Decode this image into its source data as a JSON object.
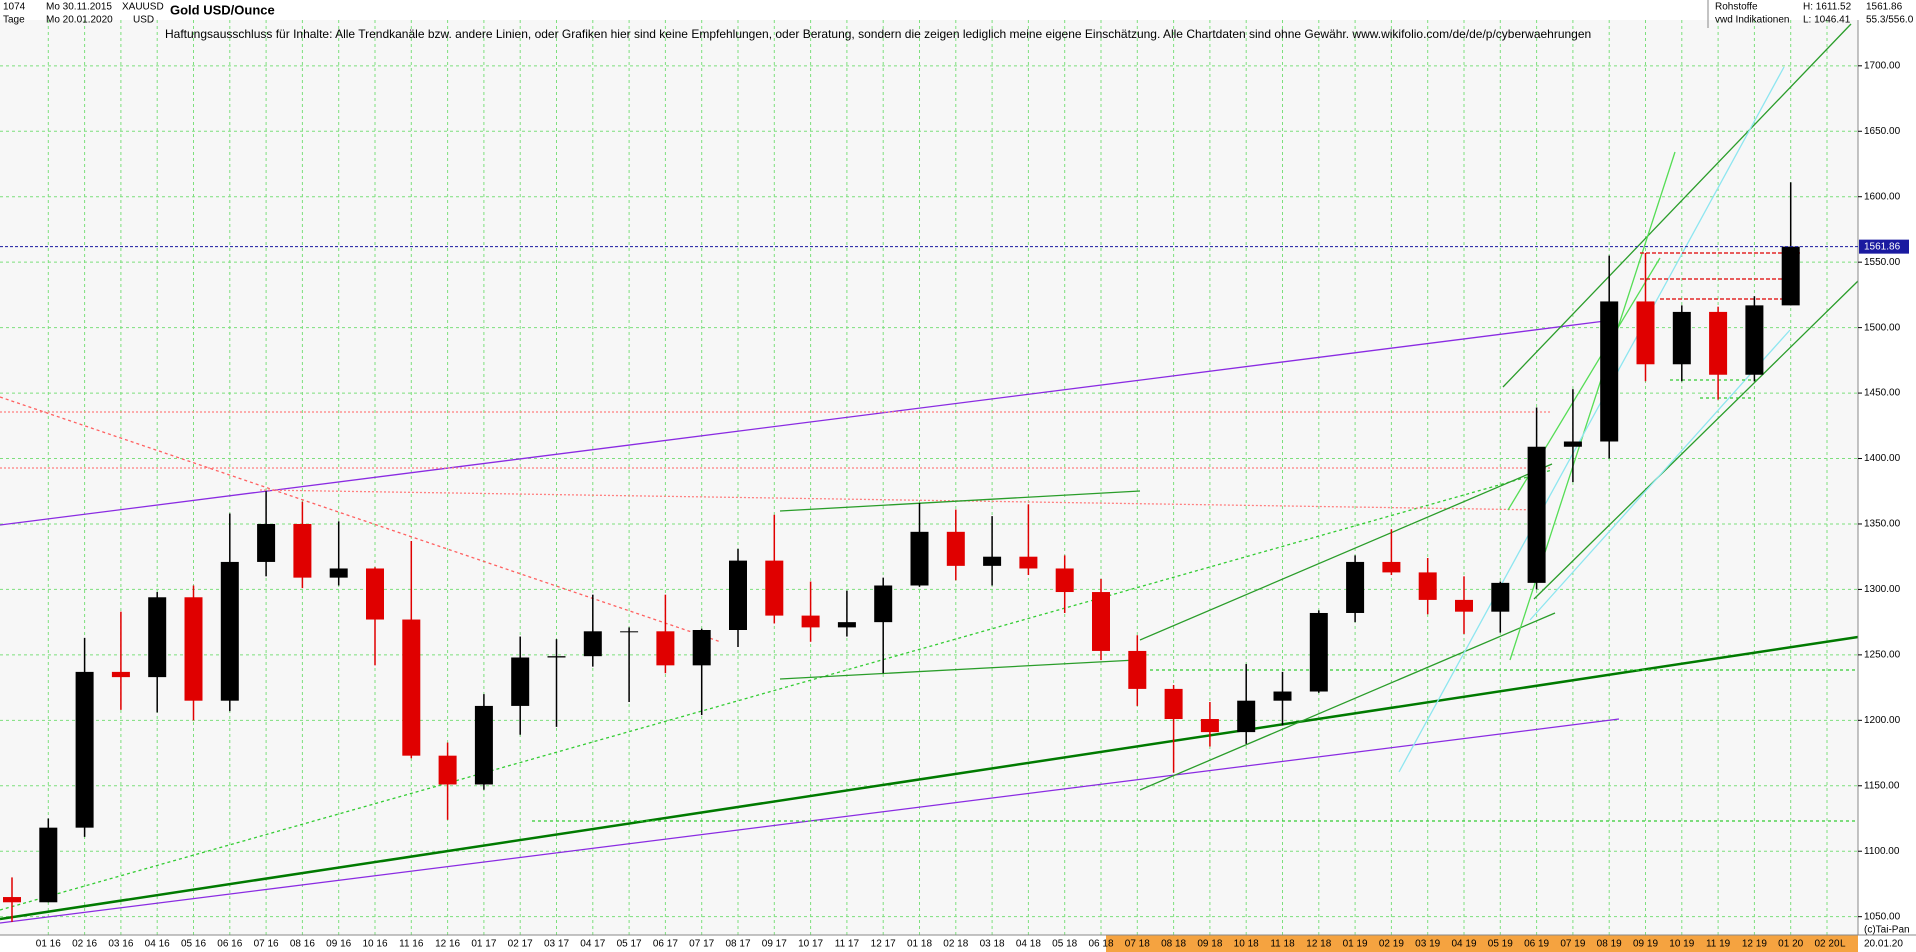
{
  "header": {
    "count": "1074",
    "from": "Mo 30.11.2015",
    "symbol": "XAUUSD",
    "period": "Tage",
    "to": "Mo 20.01.2020",
    "currency": "USD",
    "group": "Rohstoffe",
    "source": "vwd Indikationen",
    "high": "H: 1611.52",
    "low": "L: 1046.41",
    "last": "1561.86",
    "ratio": "55.3/556.0",
    "copyright": "(c)Tai-Pan",
    "date": "20.01.20",
    "scale": "L"
  },
  "chart_data": {
    "type": "candlestick",
    "title": "Gold USD/Ounce",
    "subtitle": "Haftungsausschluss für Inhalte: Alle Trendkanäle bzw. andere Linien, oder Grafiken hier sind keine Empfehlungen, oder Beratung, sondern die zeigen lediglich meine eigene Einschätzung. Alle Chartdaten sind ohne Gewähr.  www.wikifolio.com/de/de/p/cyberwaehrungen",
    "categories": [
      null,
      "01 16",
      "02 16",
      "03 16",
      "04 16",
      "05 16",
      "06 16",
      "07 16",
      "08 16",
      "09 16",
      "10 16",
      "11 16",
      "12 16",
      "01 17",
      "02 17",
      "03 17",
      "04 17",
      "05 17",
      "06 17",
      "07 17",
      "08 17",
      "09 17",
      "10 17",
      "11 17",
      "12 17",
      "01 18",
      "02 18",
      "03 18",
      "04 18",
      "05 18",
      "06 18",
      "07 18",
      "08 18",
      "09 18",
      "10 18",
      "11 18",
      "12 18",
      "01 19",
      "02 19",
      "03 19",
      "04 19",
      "05 19",
      "06 19",
      "07 19",
      "08 19",
      "09 19",
      "10 19",
      "11 19",
      "12 19",
      "01 20",
      "02 20"
    ],
    "open": [
      1065,
      1061,
      1118,
      1237,
      1233,
      1294,
      1215,
      1321,
      1350,
      1309,
      1316,
      1277,
      1173,
      1151,
      1211,
      1248,
      1249,
      1268,
      1268,
      1242,
      1269,
      1322,
      1280,
      1271,
      1275,
      1303,
      1344,
      1318,
      1325,
      1316,
      1298,
      1253,
      1224,
      1201,
      1191,
      1215,
      1222,
      1282,
      1321,
      1313,
      1292,
      1283,
      1305,
      1409,
      1413,
      1520,
      1472,
      1512,
      1464,
      1517,
      null
    ],
    "high": [
      1080,
      1125,
      1263,
      1283,
      1298,
      1303,
      1358,
      1375,
      1367,
      1352,
      1317,
      1337,
      1183,
      1220,
      1264,
      1262,
      1296,
      1271,
      1296,
      1270,
      1331,
      1357,
      1306,
      1299,
      1309,
      1366,
      1361,
      1356,
      1365,
      1326,
      1308,
      1265,
      1227,
      1214,
      1243,
      1237,
      1284,
      1326,
      1346,
      1324,
      1310,
      1306,
      1439,
      1453,
      1555,
      1557,
      1517,
      1516,
      1524,
      1611,
      null
    ],
    "low": [
      1046,
      1061,
      1111,
      1208,
      1206,
      1200,
      1207,
      1310,
      1301,
      1303,
      1242,
      1171,
      1124,
      1147,
      1189,
      1195,
      1241,
      1214,
      1236,
      1204,
      1256,
      1274,
      1260,
      1264,
      1236,
      1302,
      1307,
      1303,
      1311,
      1282,
      1246,
      1211,
      1160,
      1180,
      1182,
      1196,
      1221,
      1275,
      1311,
      1281,
      1266,
      1267,
      1300,
      1382,
      1400,
      1459,
      1459,
      1445,
      1459,
      1517,
      null
    ],
    "close": [
      1061,
      1118,
      1237,
      1233,
      1294,
      1215,
      1321,
      1350,
      1309,
      1316,
      1277,
      1173,
      1151,
      1211,
      1248,
      1249,
      1268,
      1268,
      1242,
      1269,
      1322,
      1280,
      1271,
      1275,
      1303,
      1344,
      1318,
      1325,
      1316,
      1298,
      1253,
      1224,
      1201,
      1191,
      1215,
      1222,
      1282,
      1321,
      1313,
      1292,
      1283,
      1305,
      1409,
      1413,
      1520,
      1472,
      1512,
      1464,
      1517,
      1561.86,
      null
    ],
    "up_color": "#000000",
    "down_color": "#e00000",
    "last_price": 1561.86,
    "ylim": [
      1036,
      1735
    ],
    "yticks": [
      {
        "value": 1050,
        "label": "1050.00"
      },
      {
        "value": 1100,
        "label": "1100.00"
      },
      {
        "value": 1150,
        "label": "1150.00"
      },
      {
        "value": 1200,
        "label": "1200.00"
      },
      {
        "value": 1250,
        "label": "1250.00"
      },
      {
        "value": 1300,
        "label": "1300.00"
      },
      {
        "value": 1350,
        "label": "1350.00"
      },
      {
        "value": 1400,
        "label": "1400.00"
      },
      {
        "value": 1450,
        "label": "1450.00"
      },
      {
        "value": 1500,
        "label": "1500.00"
      },
      {
        "value": 1550,
        "label": "1550.00"
      },
      {
        "value": 1600,
        "label": "1600.00"
      },
      {
        "value": 1650,
        "label": "1650.00"
      },
      {
        "value": 1700,
        "label": "1700.00"
      }
    ],
    "grid": true
  }
}
